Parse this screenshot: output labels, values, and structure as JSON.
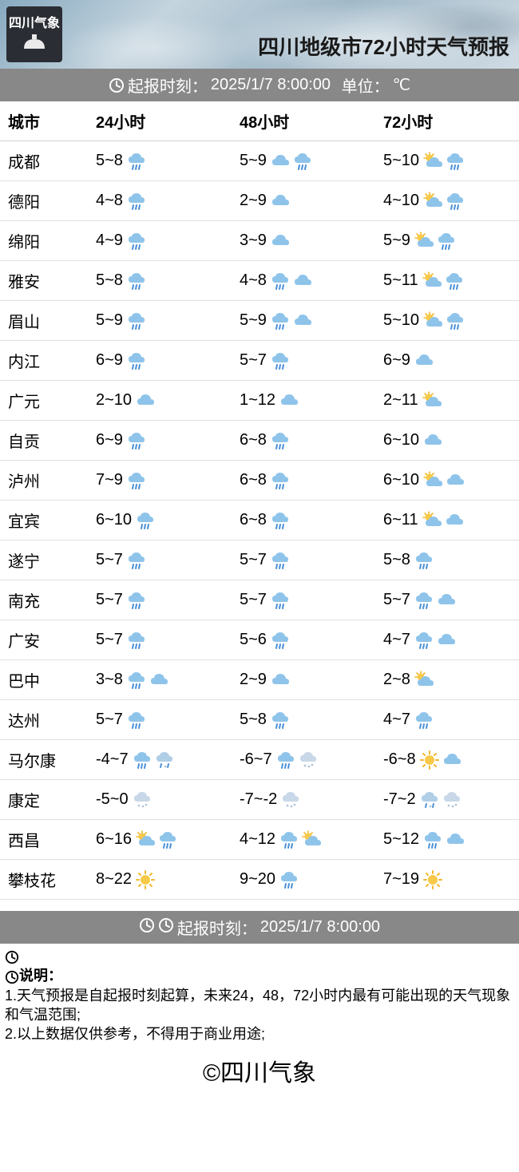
{
  "meta": {
    "title": "四川地级市72小时天气预报",
    "logo_text_1": "四川",
    "logo_text_2": "气象",
    "infobar_label": "起报时刻：",
    "infobar_time": "2025/1/7 8:00:00",
    "infobar_unit_label": "单位：",
    "infobar_unit": "℃",
    "footer_label": "起报时刻：",
    "footer_time": "2025/1/7 8:00:00",
    "notes_title": "说明：",
    "note_1": "1.天气预报是自起报时刻起算，未来24，48，72小时内最有可能出现的天气现象和气温范围;",
    "note_2": "2.以上数据仅供参考，不得用于商业用途;",
    "copyright": "©四川气象"
  },
  "colors": {
    "cloud": "#8fc4ea",
    "cloud_alt": "#a9d1ee",
    "rain": "#4a90d9",
    "snow": "#c8d8e8",
    "sun": "#f7c948",
    "sun_ray": "#f2b72a",
    "row_border": "#e0e0e0",
    "infobar_bg": "#888888",
    "infobar_text": "#ffffff"
  },
  "table": {
    "columns": [
      "城市",
      "24小时",
      "48小时",
      "72小时"
    ],
    "rows": [
      {
        "city": "成都",
        "h24": {
          "temp": "5~8",
          "icons": [
            "rain"
          ]
        },
        "h48": {
          "temp": "5~9",
          "icons": [
            "cloud",
            "rain"
          ]
        },
        "h72": {
          "temp": "5~10",
          "icons": [
            "suncloud",
            "rain"
          ]
        }
      },
      {
        "city": "德阳",
        "h24": {
          "temp": "4~8",
          "icons": [
            "rain"
          ]
        },
        "h48": {
          "temp": "2~9",
          "icons": [
            "cloud"
          ]
        },
        "h72": {
          "temp": "4~10",
          "icons": [
            "suncloud",
            "rain"
          ]
        }
      },
      {
        "city": "绵阳",
        "h24": {
          "temp": "4~9",
          "icons": [
            "rain"
          ]
        },
        "h48": {
          "temp": "3~9",
          "icons": [
            "cloud"
          ]
        },
        "h72": {
          "temp": "5~9",
          "icons": [
            "suncloud",
            "rain"
          ]
        }
      },
      {
        "city": "雅安",
        "h24": {
          "temp": "5~8",
          "icons": [
            "rain"
          ]
        },
        "h48": {
          "temp": "4~8",
          "icons": [
            "rain",
            "cloud"
          ]
        },
        "h72": {
          "temp": "5~11",
          "icons": [
            "suncloud",
            "rain"
          ]
        }
      },
      {
        "city": "眉山",
        "h24": {
          "temp": "5~9",
          "icons": [
            "rain"
          ]
        },
        "h48": {
          "temp": "5~9",
          "icons": [
            "rain",
            "cloud"
          ]
        },
        "h72": {
          "temp": "5~10",
          "icons": [
            "suncloud",
            "rain"
          ]
        }
      },
      {
        "city": "内江",
        "h24": {
          "temp": "6~9",
          "icons": [
            "rain"
          ]
        },
        "h48": {
          "temp": "5~7",
          "icons": [
            "rain"
          ]
        },
        "h72": {
          "temp": "6~9",
          "icons": [
            "cloud"
          ]
        }
      },
      {
        "city": "广元",
        "h24": {
          "temp": "2~10",
          "icons": [
            "cloud"
          ]
        },
        "h48": {
          "temp": "1~12",
          "icons": [
            "cloud"
          ]
        },
        "h72": {
          "temp": "2~11",
          "icons": [
            "suncloud"
          ]
        }
      },
      {
        "city": "自贡",
        "h24": {
          "temp": "6~9",
          "icons": [
            "rain"
          ]
        },
        "h48": {
          "temp": "6~8",
          "icons": [
            "rain"
          ]
        },
        "h72": {
          "temp": "6~10",
          "icons": [
            "cloud"
          ]
        }
      },
      {
        "city": "泸州",
        "h24": {
          "temp": "7~9",
          "icons": [
            "rain"
          ]
        },
        "h48": {
          "temp": "6~8",
          "icons": [
            "rain"
          ]
        },
        "h72": {
          "temp": "6~10",
          "icons": [
            "suncloud",
            "cloud"
          ]
        }
      },
      {
        "city": "宜宾",
        "h24": {
          "temp": "6~10",
          "icons": [
            "rain"
          ]
        },
        "h48": {
          "temp": "6~8",
          "icons": [
            "rain"
          ]
        },
        "h72": {
          "temp": "6~11",
          "icons": [
            "suncloud",
            "cloud"
          ]
        }
      },
      {
        "city": "遂宁",
        "h24": {
          "temp": "5~7",
          "icons": [
            "rain"
          ]
        },
        "h48": {
          "temp": "5~7",
          "icons": [
            "rain"
          ]
        },
        "h72": {
          "temp": "5~8",
          "icons": [
            "rain"
          ]
        }
      },
      {
        "city": "南充",
        "h24": {
          "temp": "5~7",
          "icons": [
            "rain"
          ]
        },
        "h48": {
          "temp": "5~7",
          "icons": [
            "rain"
          ]
        },
        "h72": {
          "temp": "5~7",
          "icons": [
            "rain",
            "cloud"
          ]
        }
      },
      {
        "city": "广安",
        "h24": {
          "temp": "5~7",
          "icons": [
            "rain"
          ]
        },
        "h48": {
          "temp": "5~6",
          "icons": [
            "rain"
          ]
        },
        "h72": {
          "temp": "4~7",
          "icons": [
            "rain",
            "cloud"
          ]
        }
      },
      {
        "city": "巴中",
        "h24": {
          "temp": "3~8",
          "icons": [
            "rain",
            "cloud"
          ]
        },
        "h48": {
          "temp": "2~9",
          "icons": [
            "cloud"
          ]
        },
        "h72": {
          "temp": "2~8",
          "icons": [
            "suncloud"
          ]
        }
      },
      {
        "city": "达州",
        "h24": {
          "temp": "5~7",
          "icons": [
            "rain"
          ]
        },
        "h48": {
          "temp": "5~8",
          "icons": [
            "rain"
          ]
        },
        "h72": {
          "temp": "4~7",
          "icons": [
            "rain"
          ]
        }
      },
      {
        "city": "马尔康",
        "h24": {
          "temp": "-4~7",
          "icons": [
            "rain",
            "sleet"
          ]
        },
        "h48": {
          "temp": "-6~7",
          "icons": [
            "rain",
            "snow"
          ]
        },
        "h72": {
          "temp": "-6~8",
          "icons": [
            "sun",
            "cloud"
          ]
        }
      },
      {
        "city": "康定",
        "h24": {
          "temp": "-5~0",
          "icons": [
            "snow"
          ]
        },
        "h48": {
          "temp": "-7~-2",
          "icons": [
            "snow"
          ]
        },
        "h72": {
          "temp": "-7~2",
          "icons": [
            "sleet",
            "snow"
          ]
        }
      },
      {
        "city": "西昌",
        "h24": {
          "temp": "6~16",
          "icons": [
            "suncloud",
            "rain"
          ]
        },
        "h48": {
          "temp": "4~12",
          "icons": [
            "rain",
            "suncloud"
          ]
        },
        "h72": {
          "temp": "5~12",
          "icons": [
            "rain",
            "cloud"
          ]
        }
      },
      {
        "city": "攀枝花",
        "h24": {
          "temp": "8~22",
          "icons": [
            "sun"
          ]
        },
        "h48": {
          "temp": "9~20",
          "icons": [
            "rain"
          ]
        },
        "h72": {
          "temp": "7~19",
          "icons": [
            "sun"
          ]
        }
      }
    ]
  }
}
